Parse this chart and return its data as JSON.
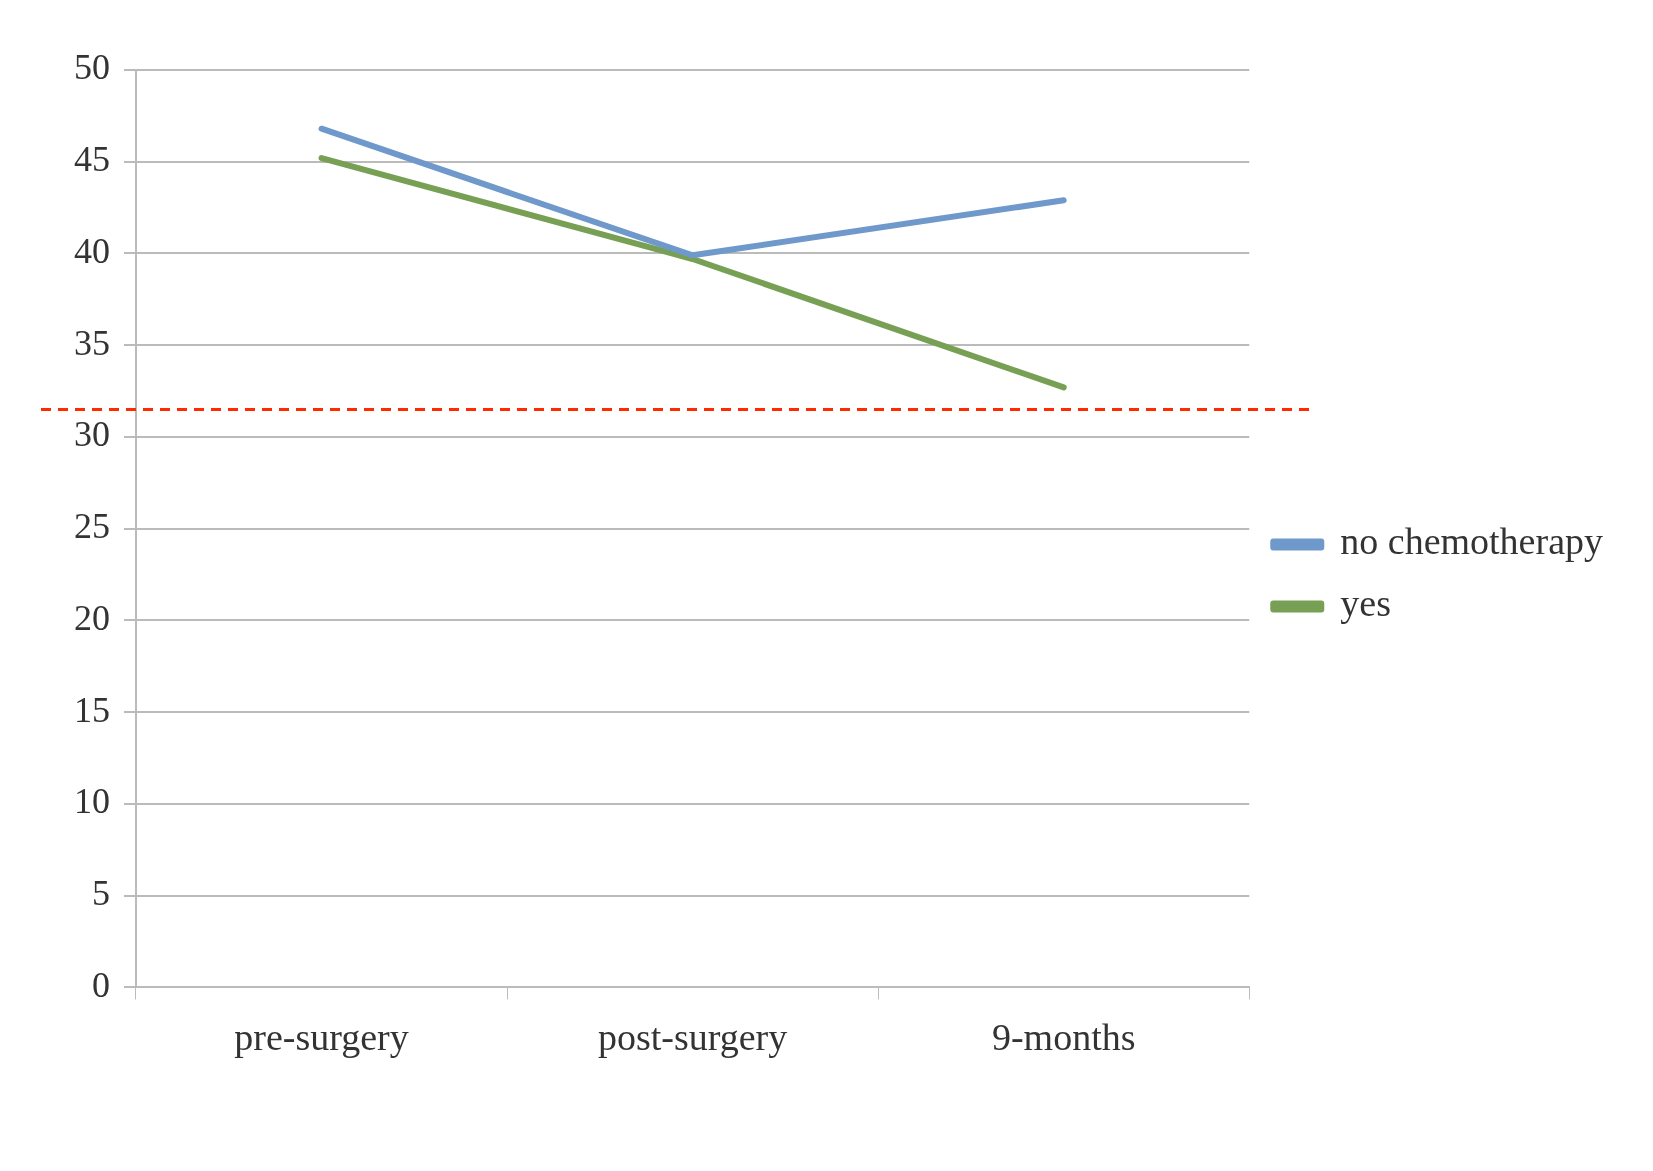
{
  "chart_data": {
    "type": "line",
    "categories": [
      "pre-surgery",
      "post-surgery",
      "9-months"
    ],
    "series": [
      {
        "name": "no chemotherapy",
        "color": "#6f98cb",
        "values": [
          46.8,
          39.9,
          42.9
        ]
      },
      {
        "name": "yes",
        "color": "#77a055",
        "values": [
          45.2,
          39.7,
          32.7
        ]
      }
    ],
    "ylim": [
      0,
      50
    ],
    "yticks": [
      0,
      5,
      10,
      15,
      20,
      25,
      30,
      35,
      40,
      45,
      50
    ],
    "grid": "y",
    "legend": "right",
    "marker": "none",
    "line_style": "solid",
    "ref_lines": [
      {
        "axis": "y",
        "value": 31.5,
        "color": "#ff2a00",
        "line_style": "dashed"
      }
    ]
  }
}
